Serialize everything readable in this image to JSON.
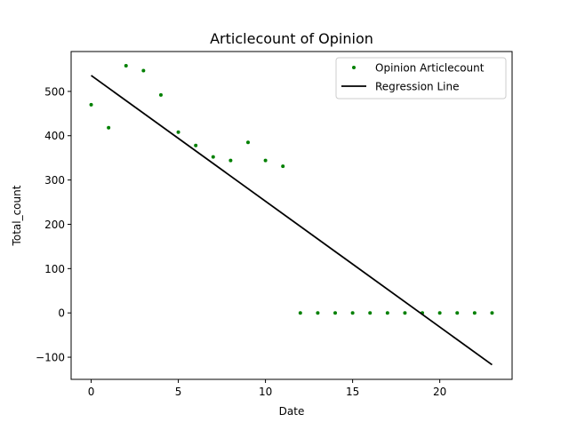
{
  "chart_data": {
    "type": "scatter",
    "title": "Articlecount of Opinion",
    "xlabel": "Date",
    "ylabel": "Total_count",
    "xlim": [
      -1.15,
      24.15
    ],
    "ylim": [
      -150,
      590
    ],
    "x_ticks": [
      0,
      5,
      10,
      15,
      20
    ],
    "y_ticks": [
      -100,
      0,
      100,
      200,
      300,
      400,
      500
    ],
    "grid": false,
    "legend_position": "top-right",
    "series": [
      {
        "name": "Opinion Articlecount",
        "kind": "points",
        "color": "#008000",
        "x": [
          0,
          1,
          2,
          3,
          4,
          5,
          6,
          7,
          8,
          9,
          10,
          11,
          12,
          13,
          14,
          15,
          16,
          17,
          18,
          19,
          20,
          21,
          22,
          23
        ],
        "y": [
          470,
          418,
          558,
          547,
          492,
          408,
          378,
          352,
          344,
          385,
          344,
          331,
          0,
          0,
          0,
          0,
          0,
          0,
          0,
          0,
          0,
          0,
          0,
          0
        ]
      },
      {
        "name": "Regression Line",
        "kind": "line",
        "color": "#000000",
        "x": [
          0,
          23
        ],
        "y": [
          536,
          -117
        ]
      }
    ]
  }
}
